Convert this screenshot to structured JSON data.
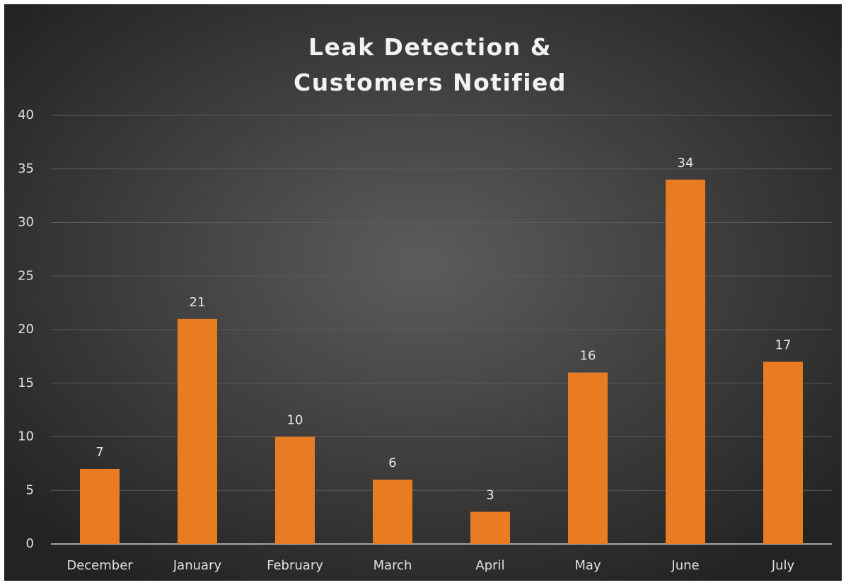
{
  "chart_data": {
    "type": "bar",
    "title": "Leak Detection & Customers Notified",
    "categories": [
      "December",
      "January",
      "February",
      "March",
      "April",
      "May",
      "June",
      "July"
    ],
    "values": [
      7,
      21,
      10,
      6,
      3,
      16,
      34,
      17
    ],
    "color": "#e97c22",
    "ylim": [
      0,
      40
    ],
    "yticks": [
      0,
      5,
      10,
      15,
      20,
      25,
      30,
      35,
      40
    ],
    "grid": true
  }
}
